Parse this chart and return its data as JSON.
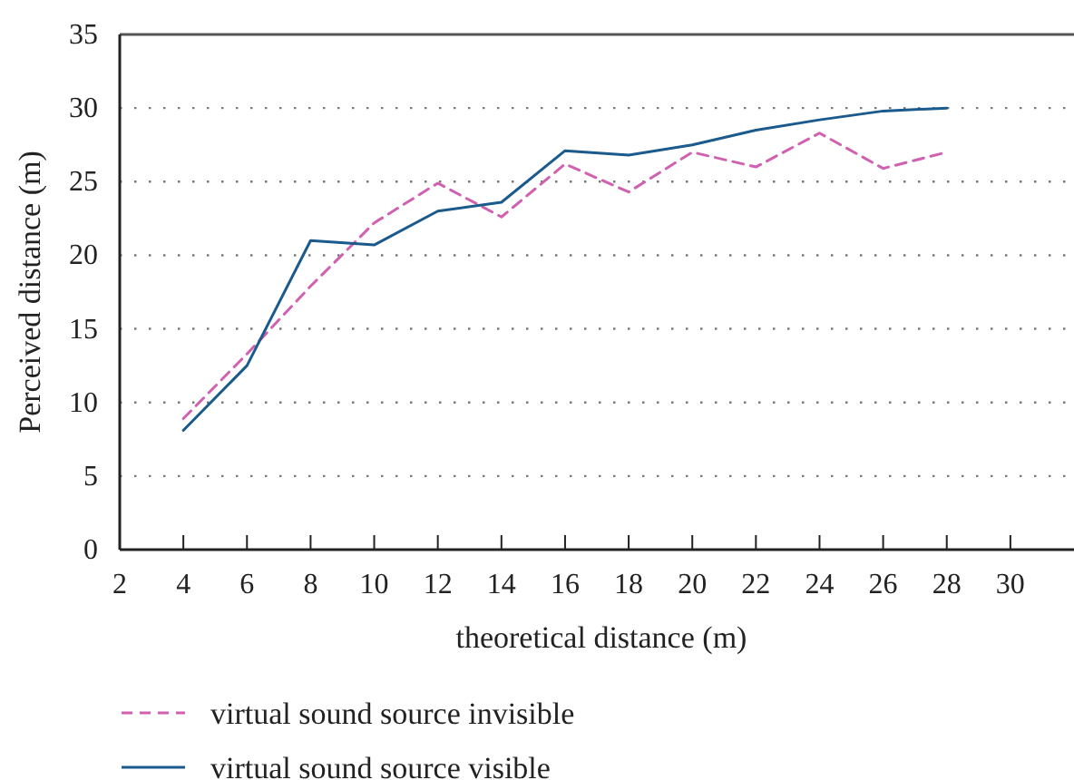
{
  "chart_data": {
    "type": "line",
    "xlabel": "theoretical distance (m)",
    "ylabel": "Perceived distance (m)",
    "x": [
      4,
      6,
      8,
      10,
      12,
      14,
      16,
      18,
      20,
      22,
      24,
      26,
      28
    ],
    "series": [
      {
        "name": "virtual sound source invisible",
        "color": "#d060b0",
        "line_style": "dashed",
        "values": [
          8.9,
          13.3,
          17.9,
          22.2,
          24.9,
          22.6,
          26.2,
          24.3,
          27.0,
          26.0,
          28.3,
          25.9,
          27.0
        ]
      },
      {
        "name": "virtual sound source visible",
        "color": "#1a5a8c",
        "line_style": "solid",
        "values": [
          8.1,
          12.5,
          21.0,
          20.7,
          23.0,
          23.6,
          27.1,
          26.8,
          27.5,
          28.5,
          29.2,
          29.8,
          30.0
        ]
      }
    ],
    "xlim": [
      2,
      32
    ],
    "xticks": [
      2,
      4,
      6,
      8,
      10,
      12,
      14,
      16,
      18,
      20,
      22,
      24,
      26,
      28,
      30
    ],
    "ylim": [
      0,
      35
    ],
    "yticks": [
      0,
      5,
      10,
      15,
      20,
      25,
      30,
      35
    ],
    "grid": "y",
    "legend": "bottom",
    "marker": "none"
  }
}
